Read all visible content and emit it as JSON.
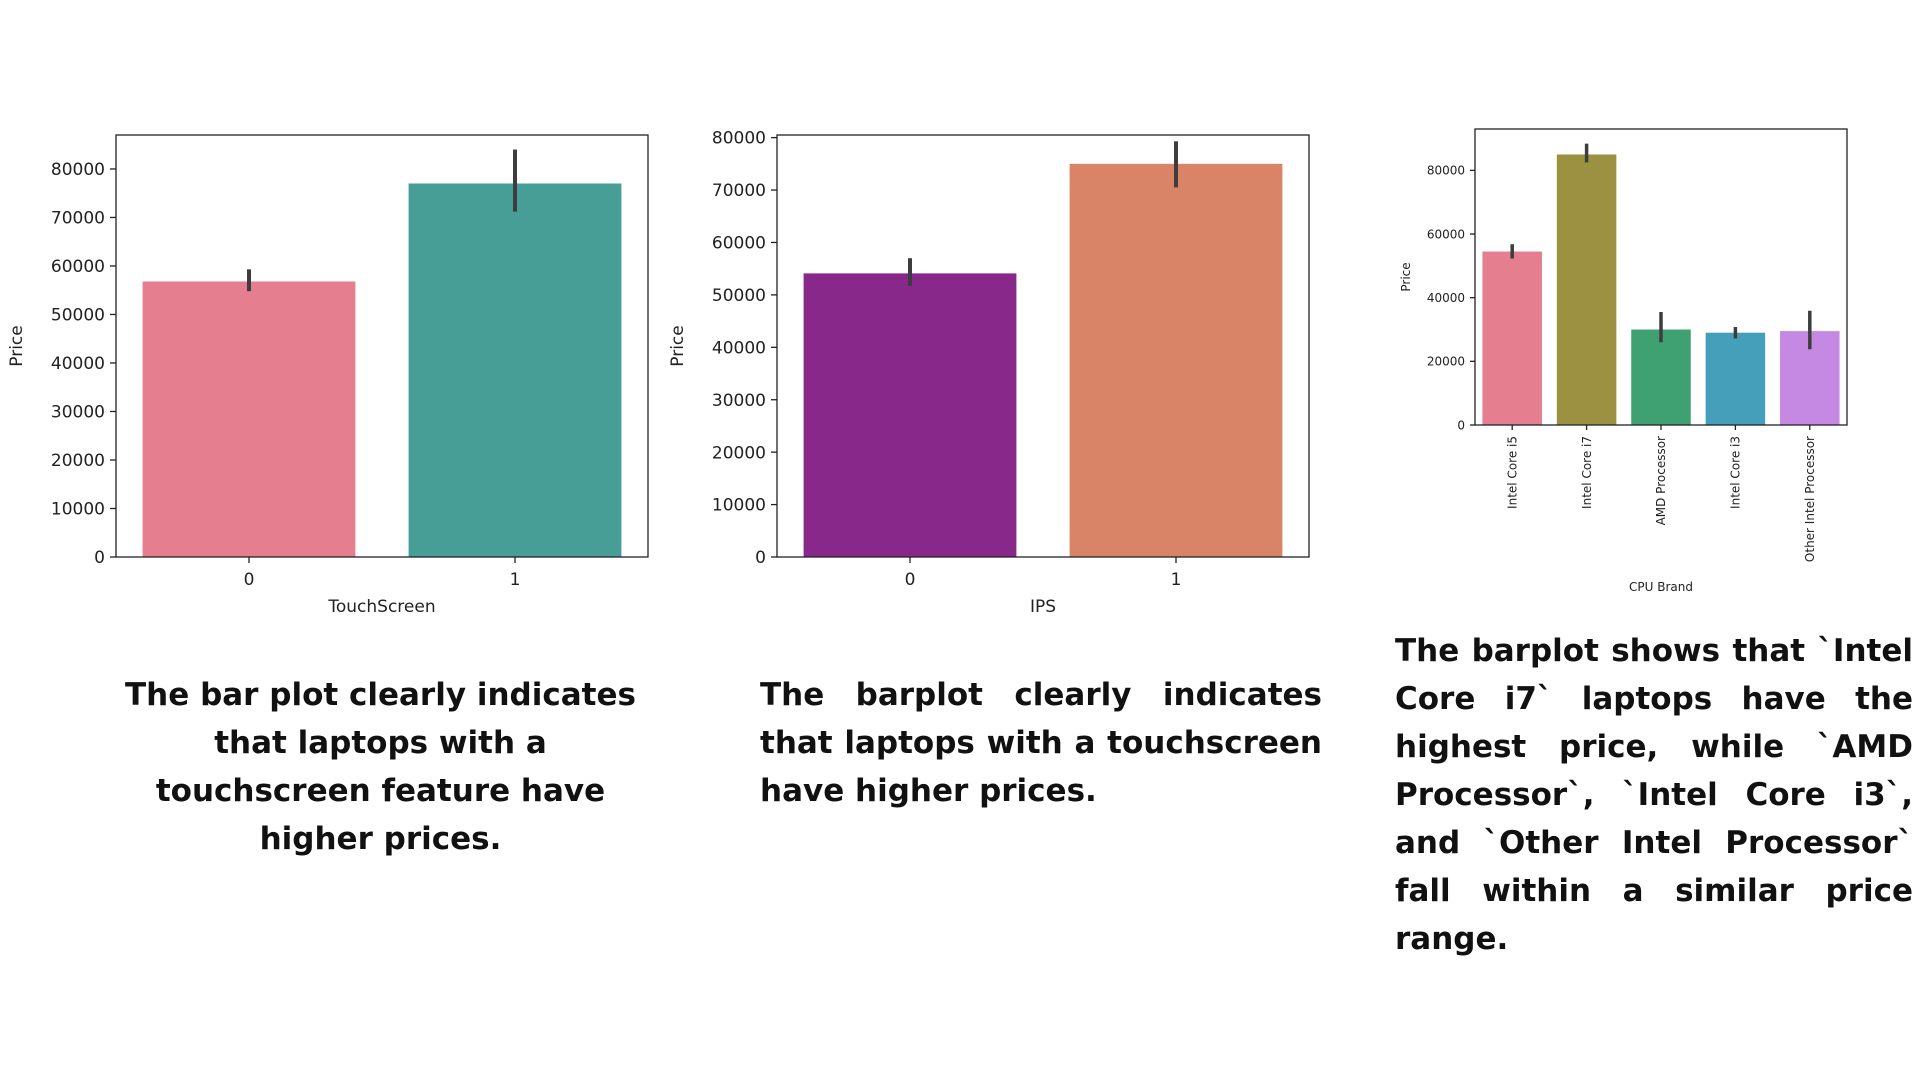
{
  "chart_data": [
    {
      "type": "bar",
      "categories": [
        "0",
        "1"
      ],
      "values": [
        56800,
        77000
      ],
      "error_bars": [
        [
          54800,
          59300
        ],
        [
          71200,
          84000
        ]
      ],
      "colors": [
        "#e57f90",
        "#469e97"
      ],
      "xlabel": "TouchScreen",
      "ylabel": "Price",
      "ylim": [
        0,
        87000
      ],
      "yticks": [
        0,
        10000,
        20000,
        30000,
        40000,
        50000,
        60000,
        70000,
        80000
      ],
      "grid": false
    },
    {
      "type": "bar",
      "categories": [
        "0",
        "1"
      ],
      "values": [
        54100,
        75000
      ],
      "error_bars": [
        [
          51700,
          57000
        ],
        [
          70500,
          79300
        ]
      ],
      "colors": [
        "#87288a",
        "#d98467"
      ],
      "xlabel": "IPS",
      "ylabel": "Price",
      "ylim": [
        0,
        80500
      ],
      "yticks": [
        0,
        10000,
        20000,
        30000,
        40000,
        50000,
        60000,
        70000,
        80000
      ],
      "grid": false
    },
    {
      "type": "bar",
      "categories": [
        "Intel Core i5",
        "Intel Core i7",
        "AMD Processor",
        "Intel Core i3",
        "Other Intel Processor"
      ],
      "values": [
        54500,
        85000,
        30000,
        29000,
        29500
      ],
      "error_bars": [
        [
          52300,
          56800
        ],
        [
          82500,
          88400
        ],
        [
          26000,
          35500
        ],
        [
          27200,
          30800
        ],
        [
          23800,
          35900
        ]
      ],
      "colors": [
        "#e57f90",
        "#9c9140",
        "#3fa171",
        "#459fba",
        "#c588e3"
      ],
      "xlabel": "CPU Brand",
      "ylabel": "Price",
      "ylim": [
        0,
        93000
      ],
      "yticks": [
        0,
        20000,
        40000,
        60000,
        80000
      ],
      "grid": false
    }
  ],
  "captions": {
    "touchscreen": "The bar plot clearly indicates that laptops with a touchscreen feature have higher prices.",
    "ips": "The barplot clearly indicates that laptops with a touchscreen have higher prices.",
    "cpu": "The barplot shows that `Intel Core i7` laptops have the highest price, while `AMD Processor`, `Intel Core i3`, and `Other Intel Processor` fall within a similar price range."
  }
}
